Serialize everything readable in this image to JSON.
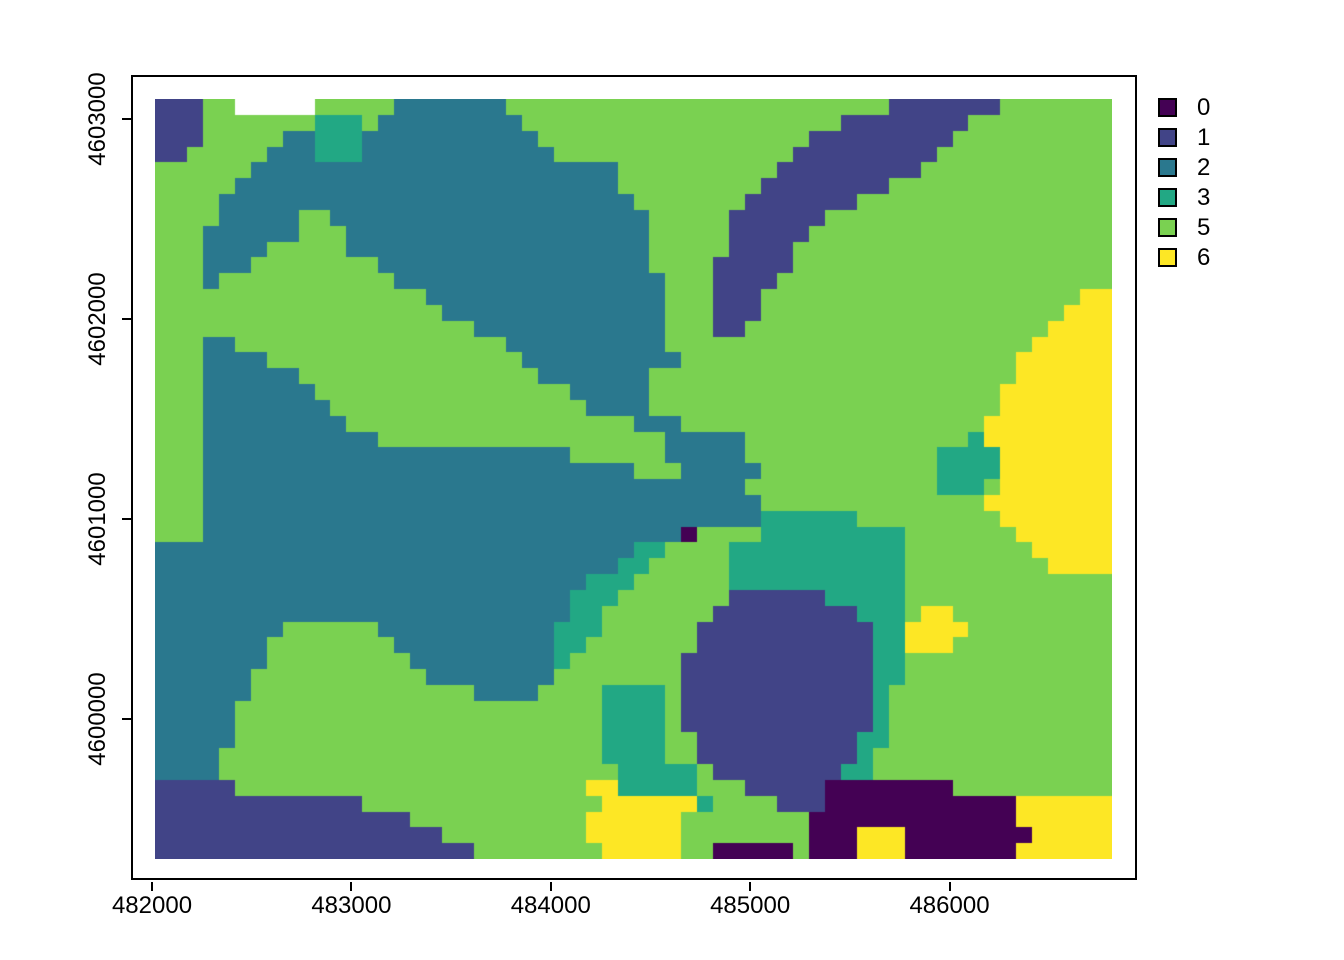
{
  "chart_data": {
    "type": "heatmap",
    "subtype": "categorical-raster-map",
    "title": "",
    "xlabel": "",
    "ylabel": "",
    "grid_on": false,
    "legend_position": "right",
    "x_tick_labels": [
      "482000",
      "483000",
      "484000",
      "485000",
      "486000"
    ],
    "x_tick_values": [
      482000,
      483000,
      484000,
      485000,
      486000
    ],
    "y_tick_labels": [
      "4600000",
      "4601000",
      "4602000",
      "4603000"
    ],
    "y_tick_values": [
      4600000,
      4601000,
      4602000,
      4603000
    ],
    "extent": {
      "xmin": 482015,
      "xmax": 486815,
      "ymin": 4599300,
      "ymax": 4603100
    },
    "categories": [
      {
        "label": "0",
        "color": "#440154"
      },
      {
        "label": "1",
        "color": "#414487"
      },
      {
        "label": "2",
        "color": "#2A788E"
      },
      {
        "label": "3",
        "color": "#22A884"
      },
      {
        "label": "5",
        "color": "#7AD151"
      },
      {
        "label": "6",
        "color": "#FDE725"
      }
    ],
    "legend_swatch_border": "#000000",
    "no_data_char": ".",
    "raster": {
      "cols": 60,
      "rows": 48,
      "cells": [
        "11155.....555552222222555555555555555555555555111111155555555",
        "111555555533352222222225555555555555555555511111111555555555",
        "111555552233322222222222555555555555555551111111115555555555",
        "115555522233322222222222255555555555555511111111155555555555",
        "555555222222222222222222222225555555555111111111555555555555",
        "555552222222222222222222222225555555551111111155555555555555",
        "555522222222222222222222222222555555511111115555555555555555",
        "555522222552222222222222222222255555111111555555555555555555",
        "555222222555222222222222222222255555111115555555555555555555",
        "555222255555222222222222222222255555111155555555555555555555",
        "555222555555552222222222222222255551111155555555555555555555",
        "555255555555555222222222222222225551111555555555555555555555",
        "555555555555555552222222222222225551115555555555555555555566",
        "555555555555555555222222222222225551115555555555555555555666",
        "555555555555555555552222222222225551155555555555555555556666",
        "555225555555555555555522222222225555555555555555555555566666",
        "555222255555555555555552222222222555555555555555555555666666",
        "555222222555555555555555222222255555555555555555555555666666",
        "555222222255555555555555552222255555555555555555555556666666",
        "555222222225555555555555555222255555555555555555555556666666",
        "555222222222555555555555555555222555555555555555555566666666",
        "555222222222225555555555555555552222255555555555555366666666",
        "555222222222222222222222225555552222255555555555533336666666",
        "555222222222222222222222222222555222225555555555533336666666",
        "555222222222222222222222222222222222255555555555533356666666",
        "555222222222222222222222222222222222225555555555555566666666",
        "555222222222222222222222222222222222223333335555555556666666",
        "555222222222222222222222222222222055553333333335555555666666",
        "222222222222222222222222222222335555333333333335555555566666",
        "222222222222222222222222222223355555333333333335555555556666",
        "222222222222222222222222222333555555333333333335555555555555",
        "222222222222222222222222223335555555111111333335555555555555",
        "222222222222222222222222223355555551111111113335665555555555",
        "222222225555552222222222233355555511111111111336666555555555",
        "222222255555555222222222233555555511111111111336665555555555",
        "222222255555555522222222235555555111111111111335555555555555",
        "222222555555555552222222255555555111111111111335555555555555",
        "222222555555555555552222555533335111111111111355555555555555",
        "222225555555555555555555555533335111111111111355555555555555",
        "222225555555555555555555555533335111111111111355555555555555",
        "222225555555555555555555555533335511111111113355555555555555",
        "222255555555555555555555555533335511111111113555555555555555",
        "222255555555555555555555555553333351111111133555555555555555",
        "111115555555555555555555555663333355511111000000005555555555",
        "111111111111155555555555555566666635555111000000000000666666",
        "111111111111111155555555555666666555555550000000000000666666",
        "111111111111111111555555555666666555555550006660000000066666",
        "111111111111111111115555555566666550000050006660000000666666"
      ]
    }
  },
  "layout_note_visible_elements": {
    "plot_frame": true,
    "tick_marks": "outward, bottom and left"
  }
}
